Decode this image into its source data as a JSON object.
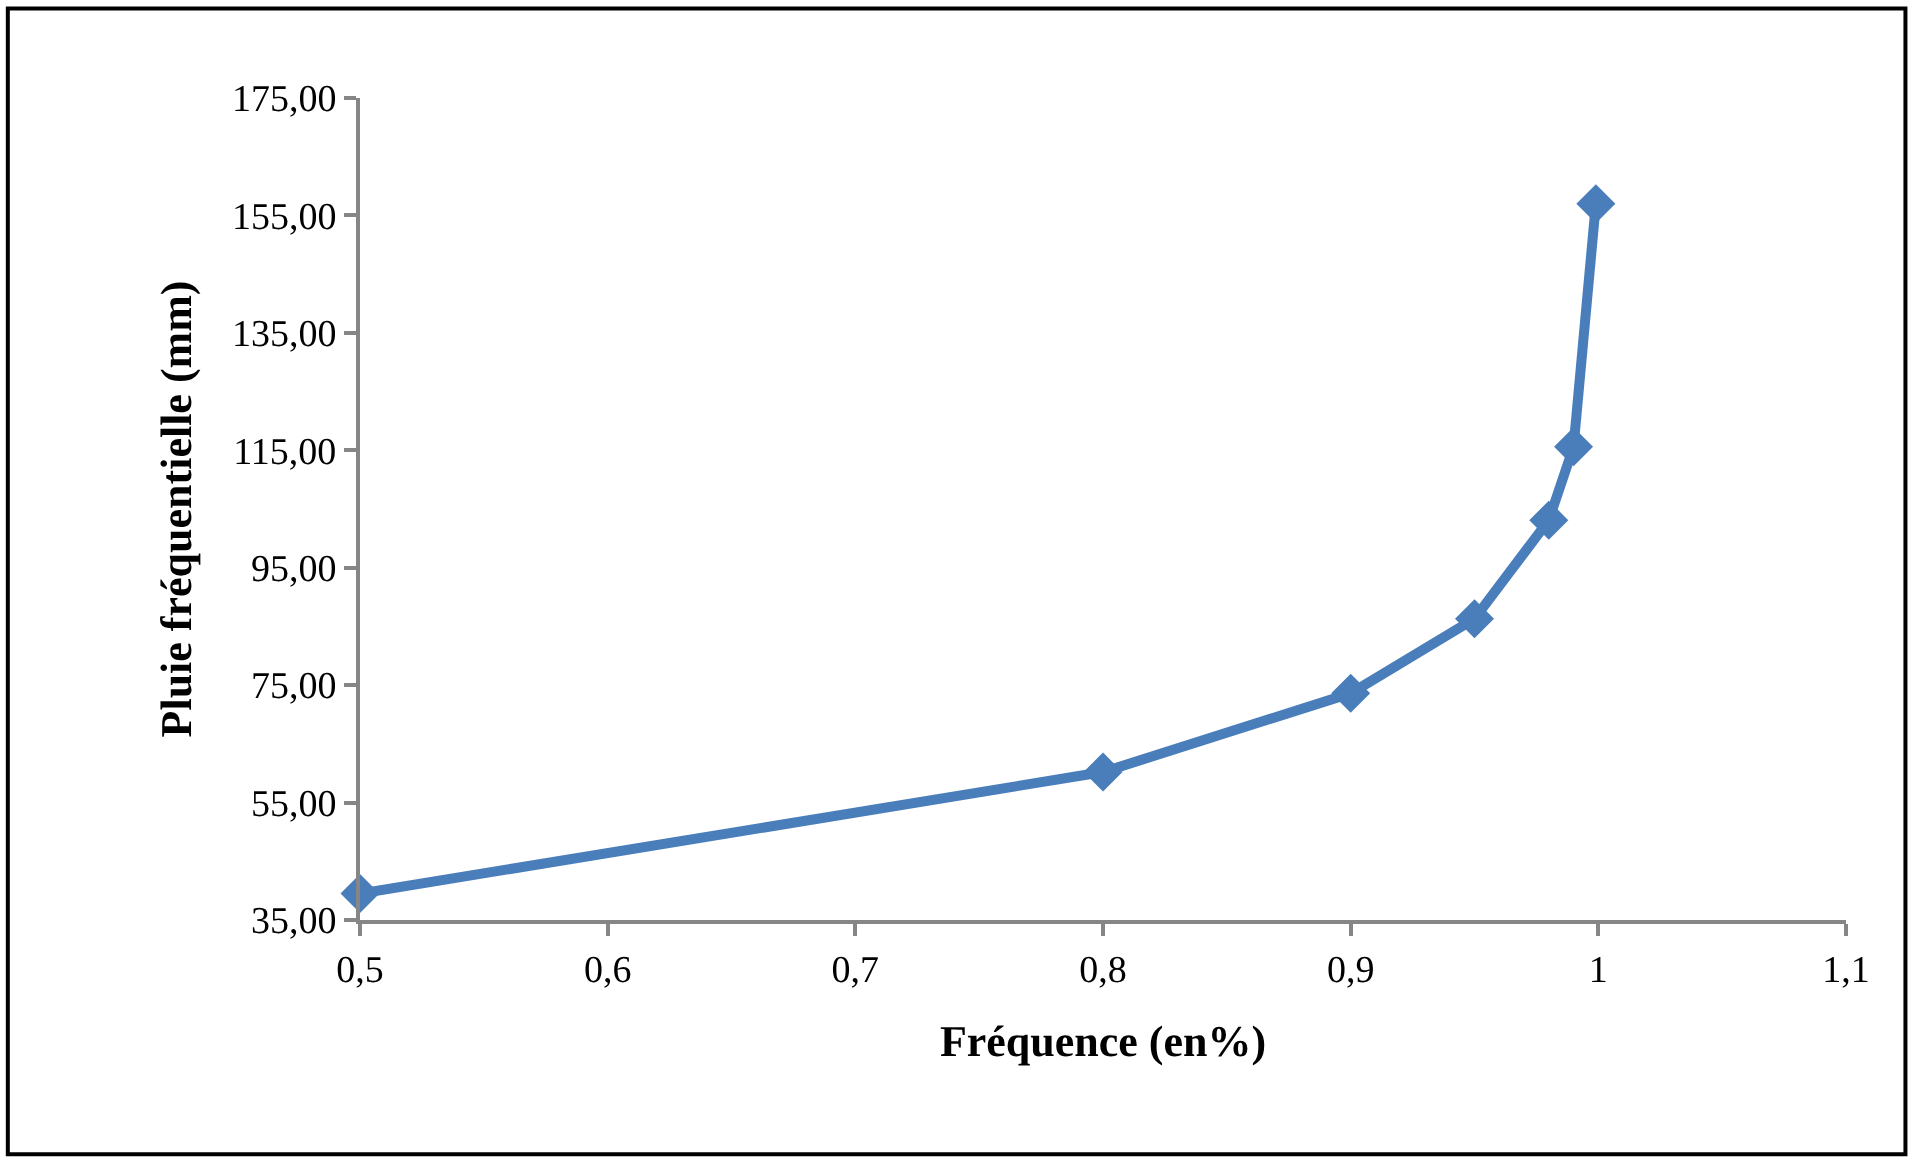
{
  "chart_data": {
    "type": "line",
    "xlabel": "Fréquence (en%)",
    "ylabel": "Pluie fréquentielle (mm)",
    "x": [
      0.5,
      0.8,
      0.9,
      0.95,
      0.98,
      0.99,
      0.999
    ],
    "series": [
      {
        "color": "#4a7ebb",
        "values": [
          39.5,
          60.2,
          73.6,
          86.3,
          103.1,
          115.6,
          157.0
        ]
      }
    ],
    "xlim": [
      0.5,
      1.1
    ],
    "xticks": [
      {
        "value": 0.5,
        "label": "0,5"
      },
      {
        "value": 0.6,
        "label": "0,6"
      },
      {
        "value": 0.7,
        "label": "0,7"
      },
      {
        "value": 0.8,
        "label": "0,8"
      },
      {
        "value": 0.9,
        "label": "0,9"
      },
      {
        "value": 1,
        "label": "1"
      },
      {
        "value": 1.1,
        "label": "1,1"
      }
    ],
    "ylim": [
      35,
      175
    ],
    "yticks": [
      {
        "value": 35,
        "label": "35,00"
      },
      {
        "value": 55,
        "label": "55,00"
      },
      {
        "value": 75,
        "label": "75,00"
      },
      {
        "value": 95,
        "label": "95,00"
      },
      {
        "value": 115,
        "label": "115,00"
      },
      {
        "value": 135,
        "label": "135,00"
      },
      {
        "value": 155,
        "label": "155,00"
      },
      {
        "value": 175,
        "label": "175,00"
      }
    ],
    "marker": "diamond",
    "line_style": "solid"
  }
}
